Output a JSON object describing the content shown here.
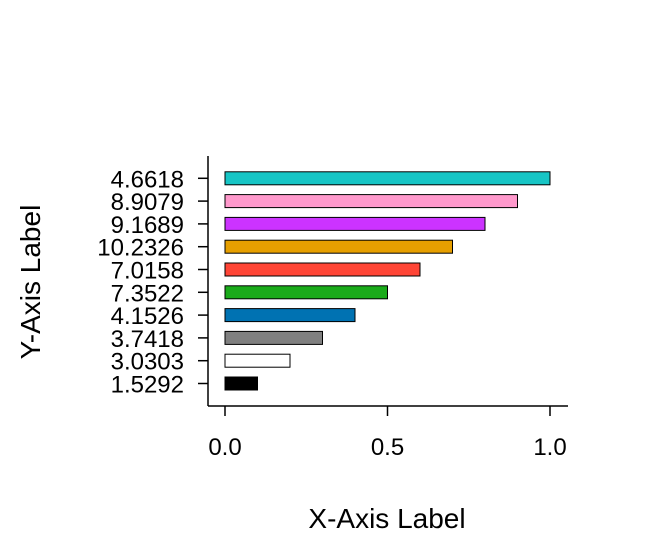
{
  "chart_data": {
    "type": "bar",
    "orientation": "horizontal",
    "title": "",
    "xlabel": "X-Axis Label",
    "ylabel": "Y-Axis Label",
    "xlim": [
      0,
      1.05
    ],
    "x_ticks": [
      "0.0",
      "0.5",
      "1.0"
    ],
    "x_tick_values": [
      0,
      0.5,
      1.0
    ],
    "grid": false,
    "categories": [
      "1.5292",
      "3.0303",
      "3.7418",
      "4.1526",
      "7.3522",
      "7.0158",
      "10.2326",
      "9.1689",
      "8.9079",
      "4.6618"
    ],
    "values": [
      0.1,
      0.2,
      0.3,
      0.4,
      0.5,
      0.6,
      0.7,
      0.8,
      0.9,
      1.0
    ],
    "colors": [
      "#000000",
      "#ffffff",
      "#808080",
      "#0072b2",
      "#1aab1a",
      "#ff4536",
      "#e69f00",
      "#cc33ff",
      "#ff99cc",
      "#17c5c5"
    ]
  }
}
